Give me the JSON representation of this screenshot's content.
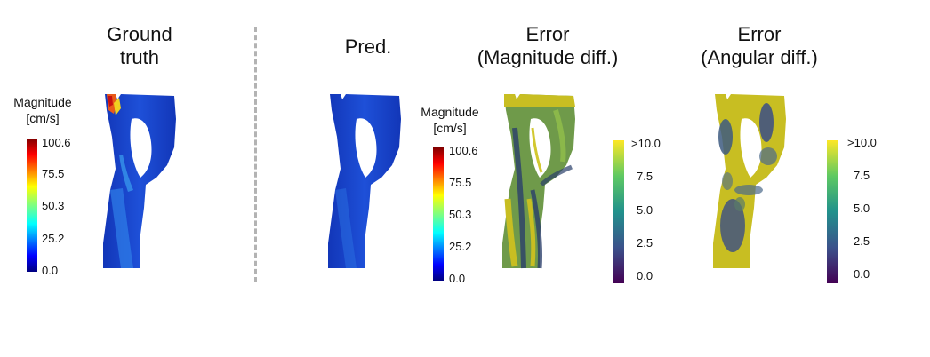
{
  "panels": {
    "ground_truth": {
      "title_line1": "Ground",
      "title_line2": "truth"
    },
    "prediction": {
      "title": "Pred."
    },
    "error_magnitude": {
      "title_line1": "Error",
      "title_line2": "(Magnitude diff.)"
    },
    "error_angular": {
      "title_line1": "Error",
      "title_line2": "(Angular diff.)"
    }
  },
  "colorbars": {
    "magnitude": {
      "title_line1": "Magnitude",
      "title_line2": "[cm/s]",
      "ticks": [
        "100.6",
        "75.5",
        "50.3",
        "25.2",
        "0.0"
      ],
      "colormap": "jet",
      "range": [
        0.0,
        100.6
      ]
    },
    "error": {
      "ticks": [
        ">10.0",
        "7.5",
        "5.0",
        "2.5",
        "0.0"
      ],
      "colormap": "viridis",
      "range": [
        0.0,
        10.0
      ]
    }
  },
  "colors": {
    "vessel_blue": "#1838c8",
    "error_yellow": "#c8be22",
    "divider": "#b3b3b3"
  }
}
